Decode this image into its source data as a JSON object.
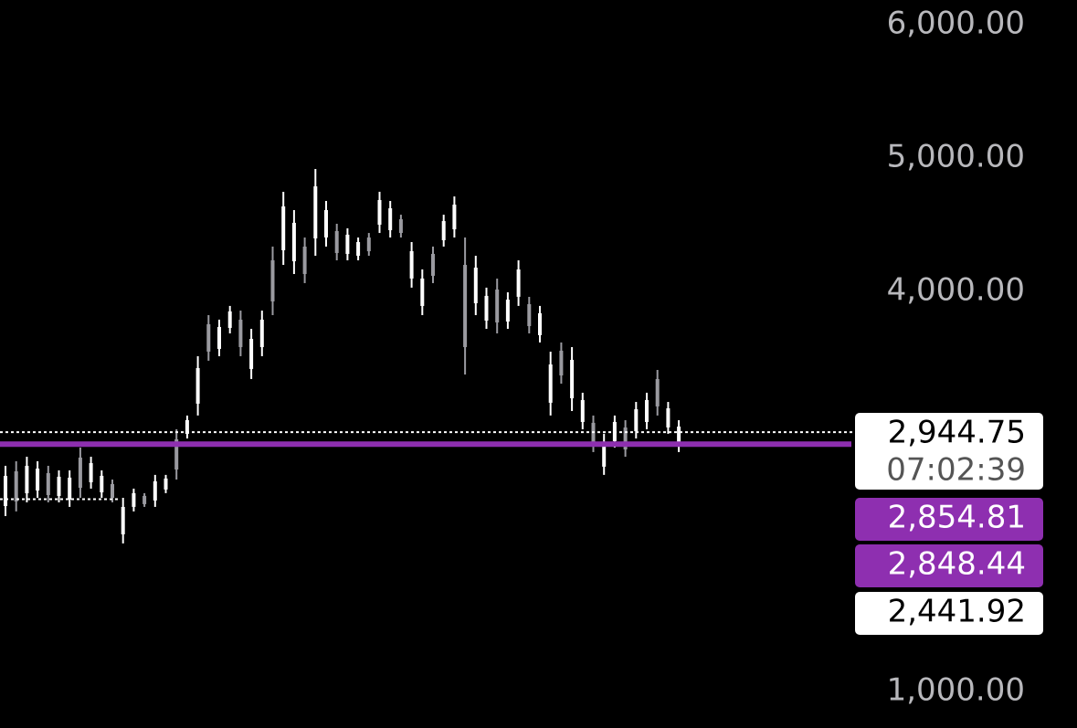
{
  "chart_data": {
    "type": "candlestick",
    "categories": [
      null,
      null,
      null,
      null,
      null,
      null,
      null,
      null,
      null,
      null,
      null,
      null,
      null,
      null,
      null,
      null,
      null,
      null,
      null,
      null,
      null,
      null,
      null,
      null,
      null,
      null,
      null,
      null,
      null,
      null,
      null,
      null,
      null,
      null,
      null,
      null,
      null,
      null,
      null,
      null,
      null,
      null,
      null,
      null,
      null,
      null,
      null,
      null,
      null,
      null,
      null,
      null,
      null,
      null,
      null,
      null,
      null,
      null,
      null,
      null,
      null,
      null,
      null,
      null
    ],
    "high": [
      2692,
      2726,
      2760,
      2726,
      2692,
      2658,
      2658,
      2829,
      2760,
      2658,
      2589,
      2452,
      2521,
      2487,
      2624,
      2624,
      2966,
      3069,
      3514,
      3822,
      3788,
      3891,
      3856,
      3719,
      3856,
      4336,
      4747,
      4610,
      4404,
      4918,
      4678,
      4507,
      4473,
      4404,
      4438,
      4747,
      4678,
      4575,
      4370,
      4165,
      4336,
      4575,
      4712,
      4404,
      4267,
      4028,
      4096,
      3993,
      4233,
      3959,
      3891,
      3548,
      3617,
      3582,
      3240,
      3069,
      2932,
      3069,
      3034,
      3171,
      3240,
      3411,
      3171,
      3034
    ],
    "low": [
      2315,
      2350,
      2418,
      2452,
      2418,
      2418,
      2384,
      2452,
      2521,
      2452,
      2418,
      2110,
      2350,
      2384,
      2384,
      2487,
      2589,
      2897,
      3069,
      3480,
      3514,
      3685,
      3514,
      3343,
      3514,
      3822,
      4199,
      4130,
      4062,
      4267,
      4336,
      4233,
      4233,
      4233,
      4267,
      4438,
      4404,
      4404,
      4028,
      3822,
      4062,
      4336,
      4404,
      3377,
      3822,
      3719,
      3685,
      3719,
      3891,
      3685,
      3617,
      3069,
      3308,
      3103,
      2966,
      2795,
      2624,
      2829,
      2760,
      2897,
      2966,
      3069,
      2932,
      2795
    ],
    "color": "#ffffff",
    "ylim": [
      726,
      6185
    ],
    "yticks": [
      {
        "value": 6000,
        "label": "6,000.00"
      },
      {
        "value": 5000,
        "label": "5,000.00"
      },
      {
        "value": 4000,
        "label": "4,000.00"
      },
      {
        "value": 1000,
        "label": "1,000.00"
      }
    ],
    "price_lines": [
      {
        "value": 2944.75,
        "label": "2,944.75",
        "countdown": "07:02:39",
        "style": "dotted",
        "color": "#ffffff"
      },
      {
        "value": 2854.81,
        "label": "2,854.81",
        "style": "solid",
        "color": "#8e2fb0"
      },
      {
        "value": 2848.44,
        "label": "2,848.44",
        "color": "#8e2fb0"
      },
      {
        "value": 2441.92,
        "label": "2,441.92",
        "style": "dotted",
        "color": "#ffffff"
      }
    ]
  }
}
